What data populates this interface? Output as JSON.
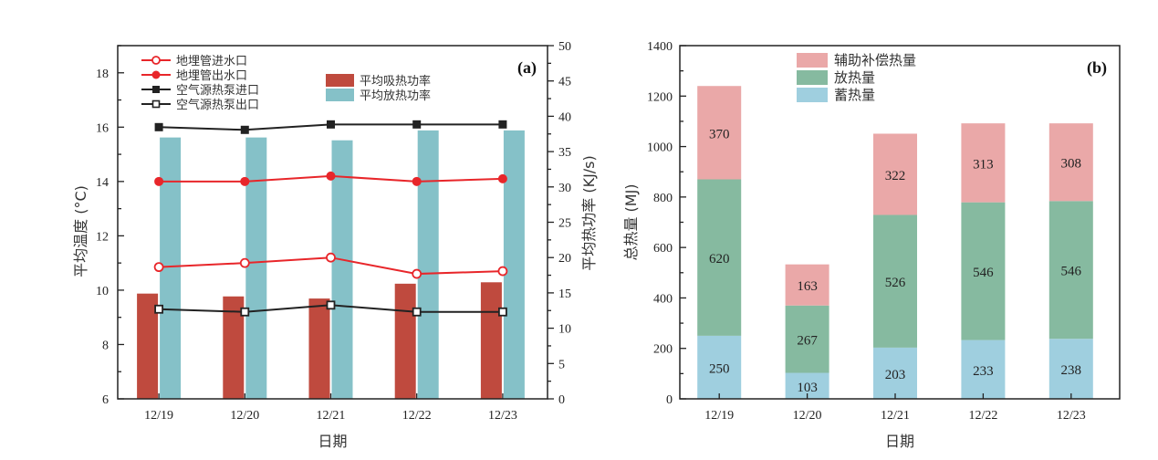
{
  "chart_data": [
    {
      "type": "bar+line",
      "panel_label": "(a)",
      "categories": [
        "12/19",
        "12/20",
        "12/21",
        "12/22",
        "12/23"
      ],
      "xlabel": "日期",
      "ylabel_left": "平均温度 (°C)",
      "ylabel_right": "平均热功率 (KJ/s)",
      "ylim_left": [
        6,
        19
      ],
      "yticks_left": [
        6,
        8,
        10,
        12,
        14,
        16,
        18
      ],
      "ylim_right": [
        0,
        50
      ],
      "yticks_right": [
        0,
        5,
        10,
        15,
        20,
        25,
        30,
        35,
        40,
        45,
        50
      ],
      "legend_position": "top-left",
      "line_series": [
        {
          "name": "地埋管进水口",
          "axis": "left",
          "marker": "open-circle",
          "color": "#e8262a",
          "values": [
            10.85,
            11.0,
            11.2,
            10.6,
            10.7
          ]
        },
        {
          "name": "地埋管出水口",
          "axis": "left",
          "marker": "filled-circle",
          "color": "#e8262a",
          "values": [
            14.0,
            14.0,
            14.2,
            14.0,
            14.1
          ]
        },
        {
          "name": "空气源热泵进口",
          "axis": "left",
          "marker": "filled-square",
          "color": "#222222",
          "values": [
            16.0,
            15.9,
            16.1,
            16.1,
            16.1
          ]
        },
        {
          "name": "空气源热泵出口",
          "axis": "left",
          "marker": "open-square",
          "color": "#222222",
          "values": [
            9.3,
            9.2,
            9.45,
            9.2,
            9.2
          ]
        }
      ],
      "bar_series": [
        {
          "name": "平均吸热功率",
          "axis": "right",
          "color": "#bf4a3e",
          "values": [
            14.9,
            14.5,
            14.2,
            16.3,
            16.5
          ]
        },
        {
          "name": "平均放热功率",
          "axis": "right",
          "color": "#85c1c8",
          "values": [
            37.0,
            37.0,
            36.6,
            38.0,
            38.0
          ]
        }
      ]
    },
    {
      "type": "stacked-bar",
      "panel_label": "(b)",
      "categories": [
        "12/19",
        "12/20",
        "12/21",
        "12/22",
        "12/23"
      ],
      "xlabel": "日期",
      "ylabel": "总热量 (MJ)",
      "ylim": [
        0,
        1400
      ],
      "yticks": [
        0,
        200,
        400,
        600,
        800,
        1000,
        1200,
        1400
      ],
      "legend_position": "top-center",
      "legend_order": [
        "辅助补偿热量",
        "放热量",
        "蓄热量"
      ],
      "series": [
        {
          "name": "蓄热量",
          "color": "#9fcfdf",
          "values": [
            250,
            103,
            203,
            233,
            238
          ]
        },
        {
          "name": "放热量",
          "color": "#86baa0",
          "values": [
            620,
            267,
            526,
            546,
            546
          ]
        },
        {
          "name": "辅助补偿热量",
          "color": "#eaa8a8",
          "values": [
            370,
            163,
            322,
            313,
            308
          ]
        }
      ]
    }
  ]
}
